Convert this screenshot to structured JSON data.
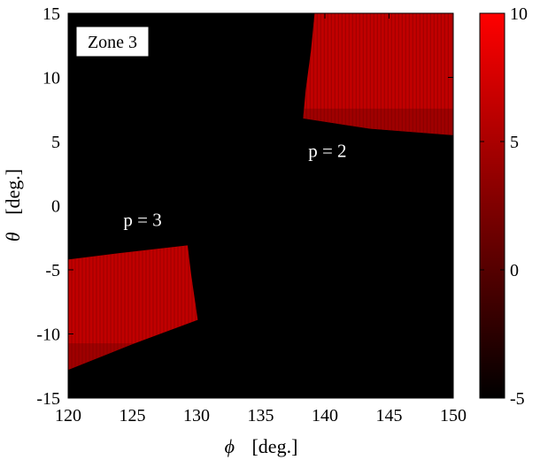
{
  "chart_data": {
    "type": "heatmap",
    "xlabel": {
      "symbol": "ϕ",
      "unit": "[deg.]"
    },
    "ylabel": {
      "symbol": "θ",
      "unit": "[deg.]"
    },
    "xlim": [
      120,
      150
    ],
    "ylim": [
      -15,
      15
    ],
    "xticks": [
      120,
      125,
      130,
      135,
      140,
      145,
      150
    ],
    "yticks": [
      -15,
      -10,
      -5,
      0,
      5,
      10,
      15
    ],
    "xtick_labels": [
      "120",
      "125",
      "130",
      "135",
      "140",
      "145",
      "150"
    ],
    "ytick_labels": [
      "-15",
      "-10",
      "-5",
      "0",
      "5",
      "10",
      "15"
    ],
    "background_value": -5,
    "colorbar": {
      "range": [
        -5,
        10
      ],
      "ticks": [
        -5,
        0,
        5,
        10
      ],
      "tick_labels": [
        "-5",
        "0",
        "5",
        "10"
      ],
      "colormap": [
        "#000000",
        "#ff0000"
      ]
    },
    "legend_box": {
      "text": "Zone 3",
      "placement": "top-left"
    },
    "annotations": [
      {
        "text": "p = 2",
        "x": 140.2,
        "y": 3.8
      },
      {
        "text": "p = 3",
        "x": 125.8,
        "y": -1.6
      }
    ],
    "regions": [
      {
        "name": "p = 2",
        "fill": "#c00000",
        "stripe": "#8a0000",
        "outline": [
          [
            139.2,
            15
          ],
          [
            150,
            15
          ],
          [
            150,
            5.5
          ],
          [
            143.5,
            6.0
          ],
          [
            138.3,
            6.8
          ],
          [
            138.5,
            9.0
          ],
          [
            138.9,
            12.0
          ]
        ]
      },
      {
        "name": "p = 3",
        "fill": "#c00000",
        "stripe": "#8a0000",
        "outline": [
          [
            120,
            -4.2
          ],
          [
            124.0,
            -3.7
          ],
          [
            129.3,
            -3.1
          ],
          [
            129.6,
            -5.5
          ],
          [
            130.1,
            -8.9
          ],
          [
            125.0,
            -10.8
          ],
          [
            120,
            -12.8
          ]
        ]
      }
    ]
  }
}
